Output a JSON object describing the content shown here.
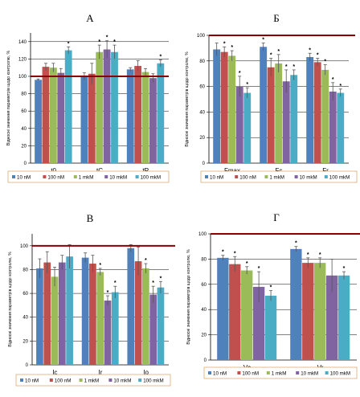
{
  "colors": {
    "series": [
      "#4f81bd",
      "#c0504d",
      "#9bbb59",
      "#8064a2",
      "#4bacc6"
    ],
    "reference_line": "#8b0000",
    "legend_border": "#d9a35c"
  },
  "chart_data": [
    {
      "type": "bar",
      "title": "А",
      "ylabel": "Відносні значення параметрів щодо контролю, %",
      "ylim": [
        0,
        150
      ],
      "yticks": [
        0,
        20,
        40,
        60,
        80,
        100,
        120,
        140
      ],
      "reference": 100,
      "grid": true,
      "legend_position": "bottom",
      "categories": [
        "t0",
        "tC",
        "tR"
      ],
      "series": [
        {
          "name": "10 nM",
          "values": [
            96,
            100,
            108
          ],
          "errors": [
            1,
            4,
            2
          ],
          "significant": [
            false,
            false,
            false
          ]
        },
        {
          "name": "100 nM",
          "values": [
            111,
            103,
            112
          ],
          "errors": [
            4,
            12,
            6
          ],
          "significant": [
            false,
            false,
            false
          ]
        },
        {
          "name": "1 mkM",
          "values": [
            110,
            128,
            105
          ],
          "errors": [
            5,
            8,
            4
          ],
          "significant": [
            false,
            true,
            false
          ]
        },
        {
          "name": "10 mkM",
          "values": [
            104,
            131,
            98
          ],
          "errors": [
            5,
            10,
            5
          ],
          "significant": [
            false,
            true,
            false
          ]
        },
        {
          "name": "100 mkM",
          "values": [
            130,
            128,
            115
          ],
          "errors": [
            4,
            8,
            4
          ],
          "significant": [
            true,
            true,
            true
          ]
        }
      ]
    },
    {
      "type": "bar",
      "title": "Б",
      "ylabel": "Відносні значення параметрів щодо контролю, %",
      "ylim": [
        0,
        100
      ],
      "yticks": [
        0,
        20,
        40,
        60,
        80,
        100
      ],
      "reference": 100,
      "grid": true,
      "legend_position": "bottom",
      "categories": [
        "Fmax",
        "Fc",
        "Fr"
      ],
      "series": [
        {
          "name": "10 nM",
          "values": [
            89,
            91,
            83
          ],
          "errors": [
            5,
            3,
            3
          ],
          "significant": [
            false,
            true,
            true
          ]
        },
        {
          "name": "100 nM",
          "values": [
            87,
            75,
            79
          ],
          "errors": [
            4,
            7,
            3
          ],
          "significant": [
            true,
            true,
            true
          ]
        },
        {
          "name": "1 mkM",
          "values": [
            84,
            78,
            73
          ],
          "errors": [
            4,
            7,
            4
          ],
          "significant": [
            true,
            true,
            true
          ]
        },
        {
          "name": "10 mkM",
          "values": [
            60,
            64,
            56
          ],
          "errors": [
            8,
            9,
            7
          ],
          "significant": [
            true,
            true,
            true
          ]
        },
        {
          "name": "100 mkM",
          "values": [
            55,
            69,
            55
          ],
          "errors": [
            4,
            4,
            3
          ],
          "significant": [
            true,
            true,
            true
          ]
        }
      ]
    },
    {
      "type": "bar",
      "title": "В",
      "ylabel": "Відносні значення параметрів щодо контролю, %",
      "ylim": [
        0,
        110
      ],
      "yticks": [
        0,
        20,
        40,
        60,
        80,
        100
      ],
      "reference": 100,
      "grid": true,
      "legend_position": "bottom",
      "categories": [
        "Ic",
        "Ir",
        "Io"
      ],
      "series": [
        {
          "name": "10 nM",
          "values": [
            81,
            90,
            98
          ],
          "errors": [
            8,
            4,
            3
          ],
          "significant": [
            false,
            false,
            false
          ]
        },
        {
          "name": "100 nM",
          "values": [
            86,
            85,
            87
          ],
          "errors": [
            9,
            7,
            12
          ],
          "significant": [
            false,
            false,
            false
          ]
        },
        {
          "name": "1 mkM",
          "values": [
            74,
            78,
            81
          ],
          "errors": [
            8,
            3,
            4
          ],
          "significant": [
            false,
            true,
            true
          ]
        },
        {
          "name": "10 mkM",
          "values": [
            86,
            54,
            59
          ],
          "errors": [
            6,
            4,
            7
          ],
          "significant": [
            false,
            true,
            true
          ]
        },
        {
          "name": "100 mkM",
          "values": [
            91,
            61,
            65
          ],
          "errors": [
            10,
            5,
            5
          ],
          "significant": [
            false,
            true,
            true
          ]
        }
      ]
    },
    {
      "type": "bar",
      "title": "Г",
      "ylabel": "Відносні значення параметрів щодо контролю, %",
      "ylim": [
        0,
        100
      ],
      "yticks": [
        0,
        20,
        40,
        60,
        80,
        100
      ],
      "reference": 100,
      "grid": true,
      "legend_position": "bottom",
      "categories": [
        "Vc",
        "Vr"
      ],
      "series": [
        {
          "name": "10 nM",
          "values": [
            81,
            88
          ],
          "errors": [
            2,
            2
          ],
          "significant": [
            true,
            true
          ]
        },
        {
          "name": "100 nM",
          "values": [
            76,
            77
          ],
          "errors": [
            6,
            4
          ],
          "significant": [
            true,
            true
          ]
        },
        {
          "name": "1 mkM",
          "values": [
            71,
            77
          ],
          "errors": [
            3,
            4
          ],
          "significant": [
            true,
            true
          ]
        },
        {
          "name": "10 mkM",
          "values": [
            58,
            67
          ],
          "errors": [
            12,
            13
          ],
          "significant": [
            true,
            false
          ]
        },
        {
          "name": "100 mkM",
          "values": [
            51,
            67
          ],
          "errors": [
            4,
            3
          ],
          "significant": [
            true,
            true
          ]
        }
      ]
    }
  ]
}
